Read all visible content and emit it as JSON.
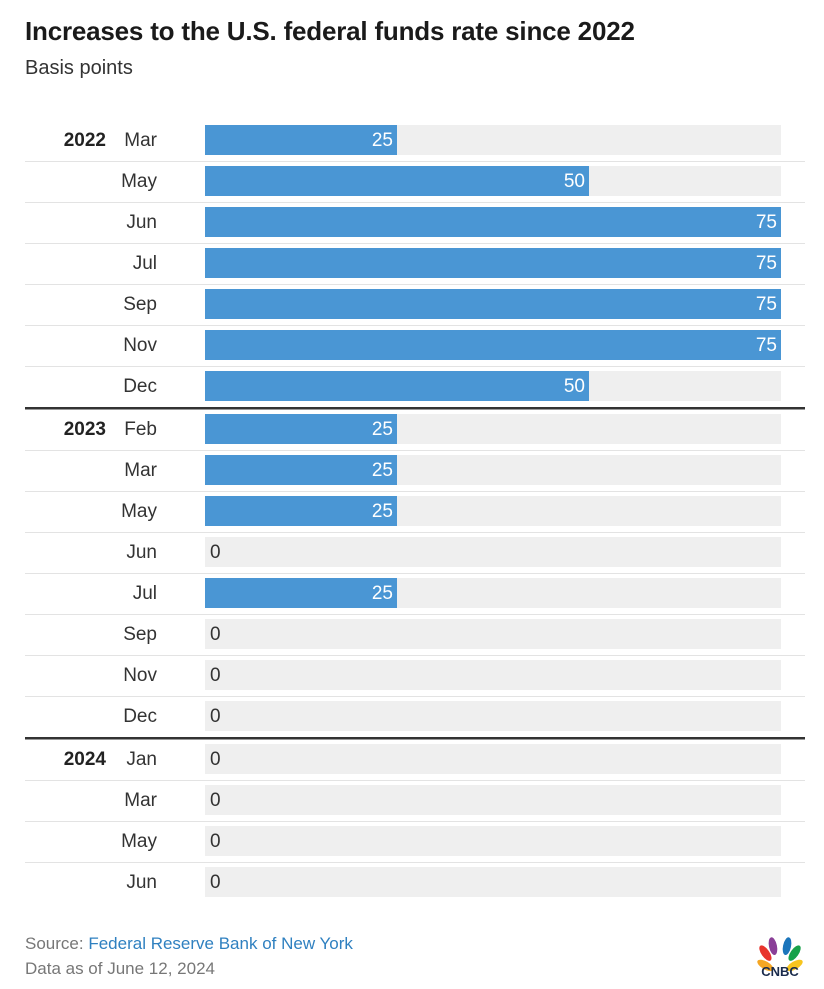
{
  "title": "Increases to the U.S. federal funds rate since 2022",
  "subtitle": "Basis points",
  "footer": {
    "source_label": "Source:",
    "source_name": "Federal Reserve Bank of New York",
    "date_note": "Data as of June 12, 2024"
  },
  "logo_text": "CNBC",
  "colors": {
    "bar": "#4a96d4",
    "track": "#efefef",
    "divider": "#333333",
    "row_line": "#e3e3e3"
  },
  "chart_data": {
    "type": "bar",
    "orientation": "horizontal",
    "xlim": [
      0,
      75
    ],
    "groups": [
      {
        "year": "2022",
        "months": [
          "Mar",
          "May",
          "Jun",
          "Jul",
          "Sep",
          "Nov",
          "Dec"
        ],
        "values": [
          25,
          50,
          75,
          75,
          75,
          75,
          50
        ]
      },
      {
        "year": "2023",
        "months": [
          "Feb",
          "Mar",
          "May",
          "Jun",
          "Jul",
          "Sep",
          "Nov",
          "Dec"
        ],
        "values": [
          25,
          25,
          25,
          0,
          25,
          0,
          0,
          0
        ]
      },
      {
        "year": "2024",
        "months": [
          "Jan",
          "Mar",
          "May",
          "Jun"
        ],
        "values": [
          0,
          0,
          0,
          0
        ]
      }
    ]
  }
}
